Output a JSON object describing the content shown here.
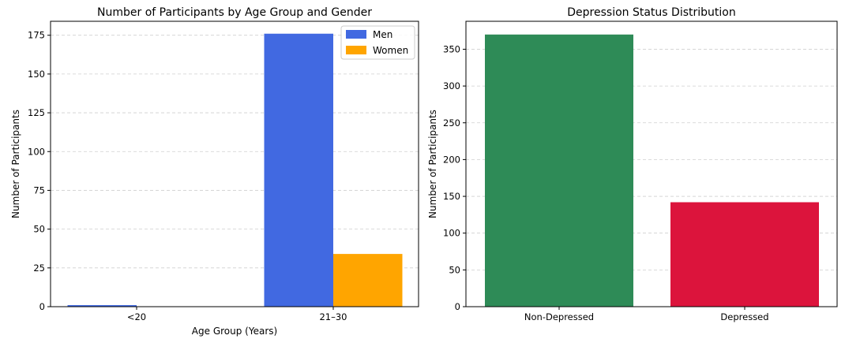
{
  "chart_data": [
    {
      "type": "bar",
      "title": "Number of Participants by Age Group and Gender",
      "xlabel": "Age Group (Years)",
      "ylabel": "Number of Participants",
      "categories": [
        "<20",
        "21–30"
      ],
      "series": [
        {
          "name": "Men",
          "color": "#4169e1",
          "values": [
            1,
            176
          ]
        },
        {
          "name": "Women",
          "color": "#ffa500",
          "values": [
            0,
            34
          ]
        }
      ],
      "yticks": [
        "0",
        "25",
        "50",
        "75",
        "100",
        "125",
        "150",
        "175"
      ],
      "ylim": [
        0,
        184
      ],
      "grid": true,
      "legend": "top-right"
    },
    {
      "type": "bar",
      "title": "Depression Status Distribution",
      "xlabel": "",
      "ylabel": "Number of Participants",
      "categories": [
        "Non-Depressed",
        "Depressed"
      ],
      "values": [
        370,
        142
      ],
      "colors": [
        "#2e8b57",
        "#dc143c"
      ],
      "yticks": [
        "0",
        "50",
        "100",
        "150",
        "200",
        "250",
        "300",
        "350"
      ],
      "ylim": [
        0,
        388
      ],
      "grid": true
    }
  ]
}
